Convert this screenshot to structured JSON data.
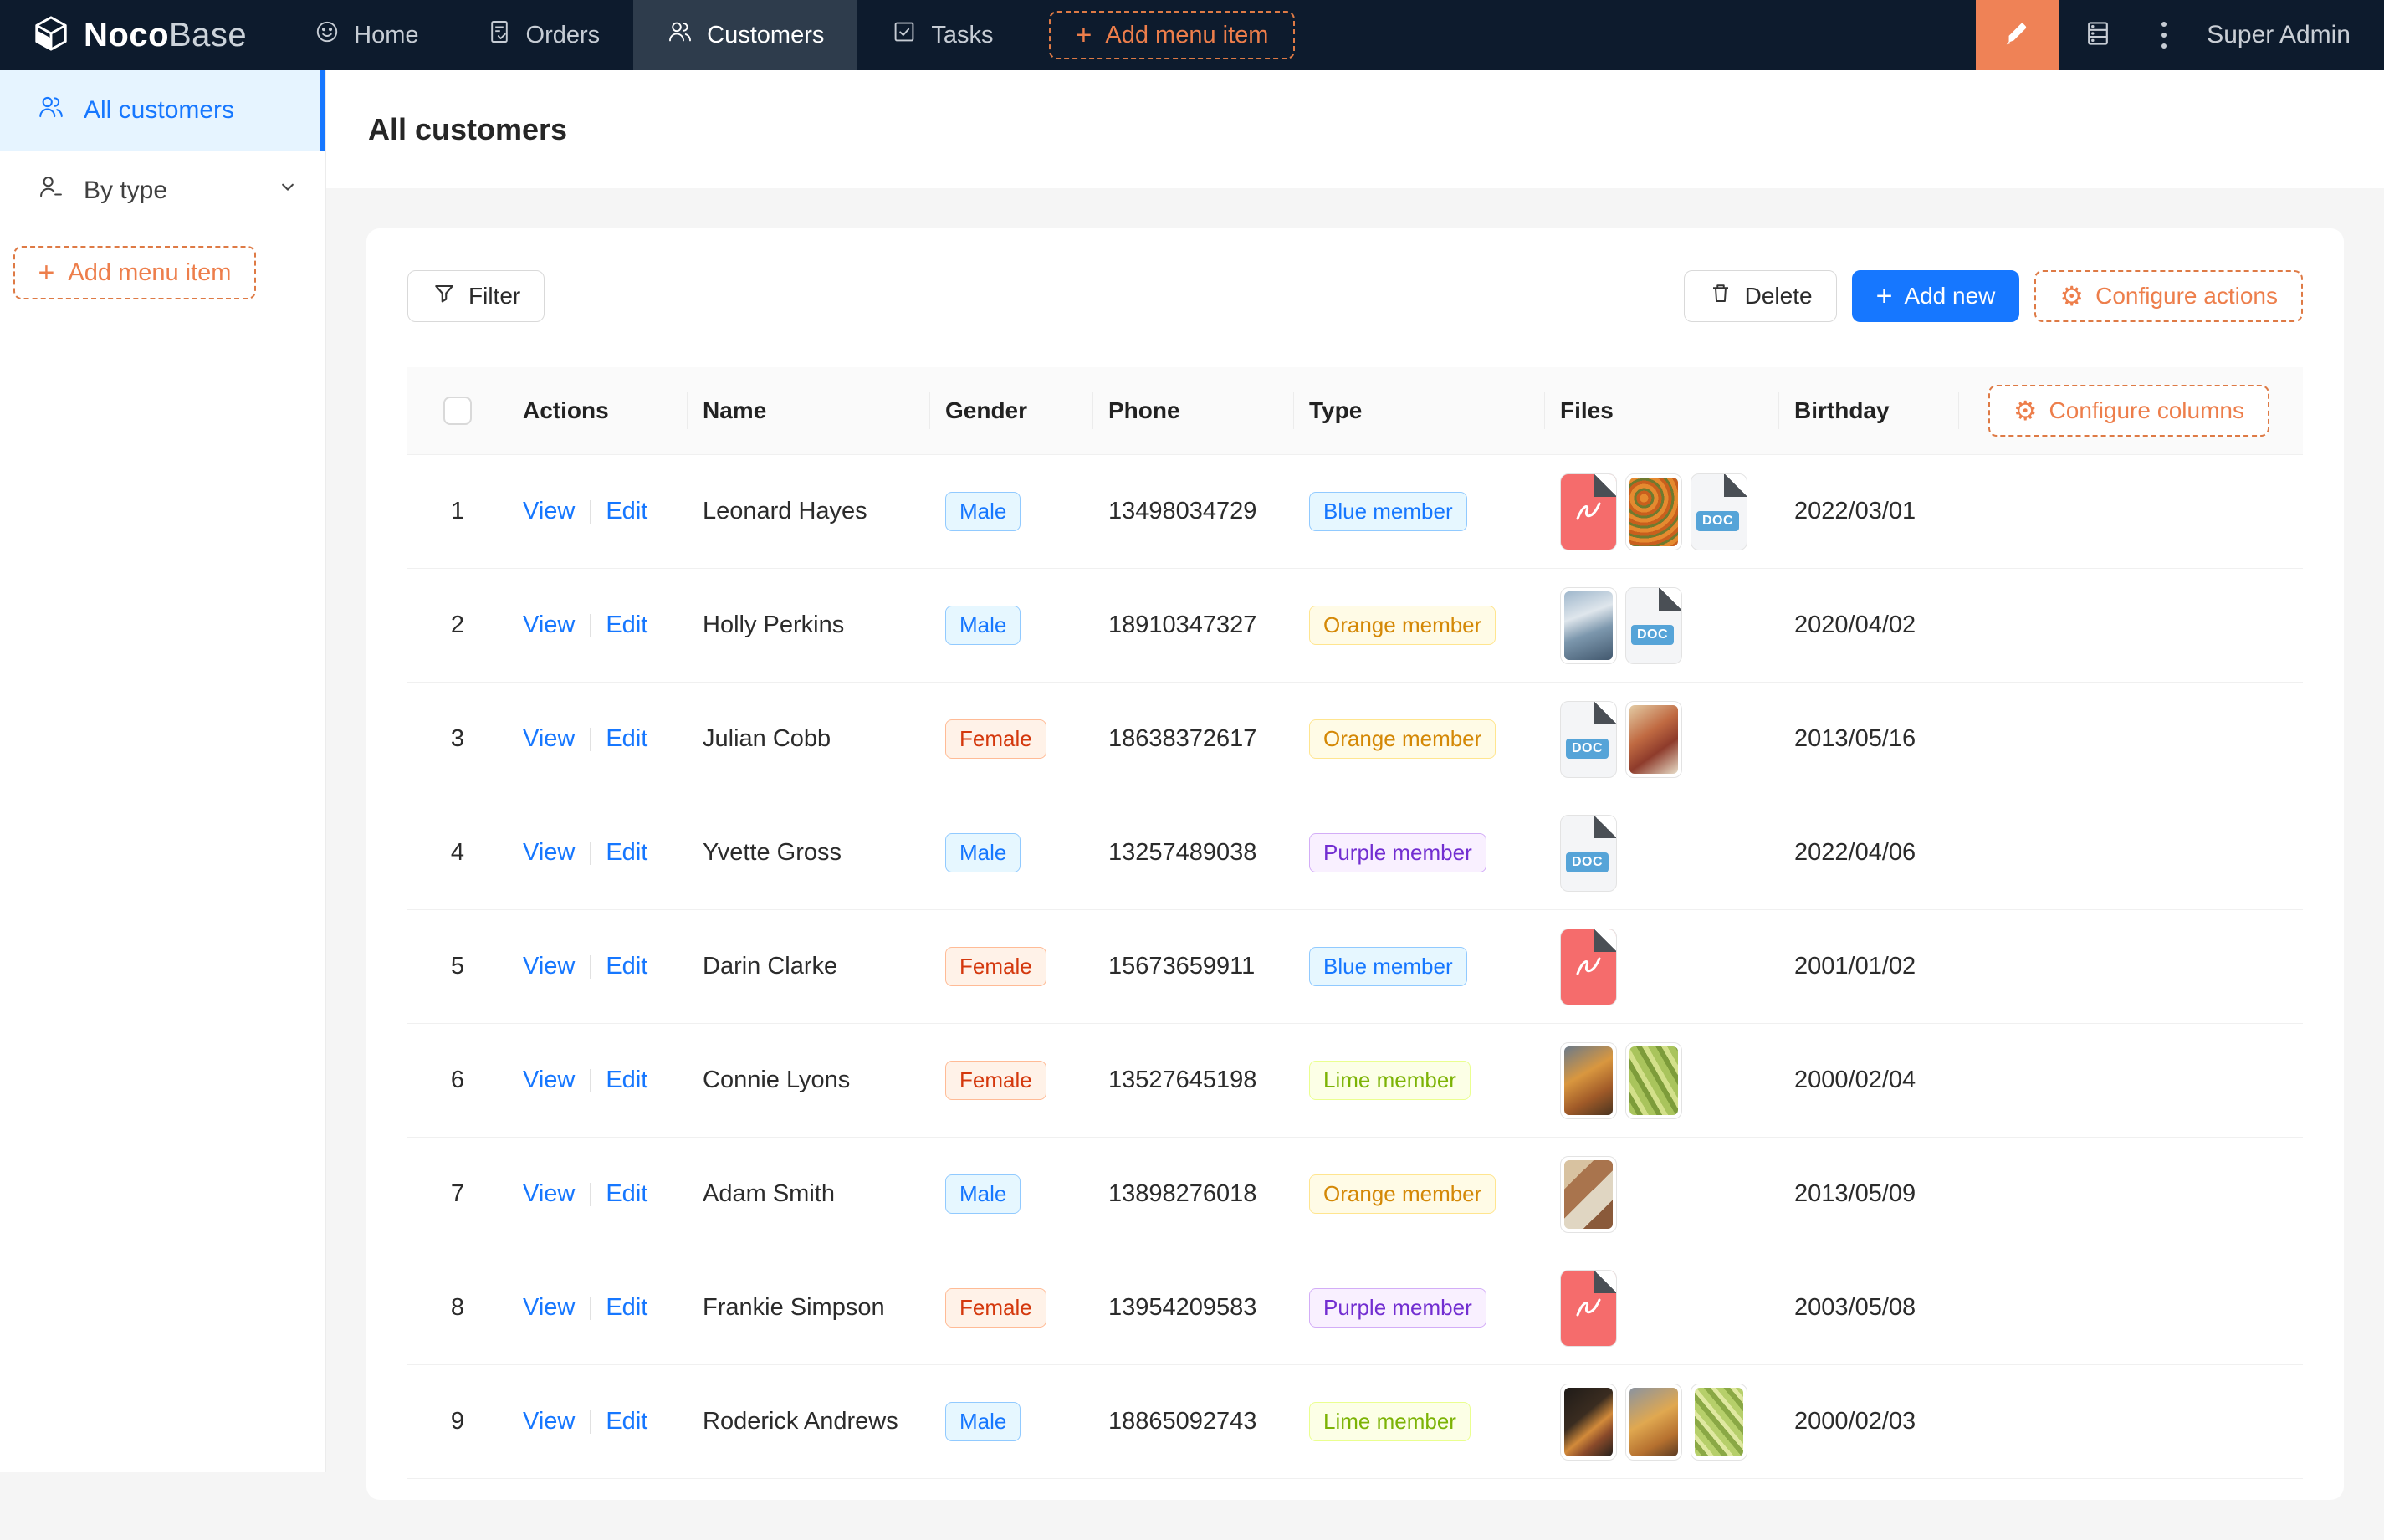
{
  "brand": {
    "bold": "Noco",
    "light": "Base",
    "logo_icon": "cube-logo-icon"
  },
  "navbar": {
    "items": [
      {
        "label": "Home",
        "icon": "smile-icon",
        "active": false
      },
      {
        "label": "Orders",
        "icon": "orders-icon",
        "active": false
      },
      {
        "label": "Customers",
        "icon": "customers-icon",
        "active": true
      },
      {
        "label": "Tasks",
        "icon": "tasks-icon",
        "active": false
      }
    ],
    "add_label": "Add menu item",
    "user": "Super Admin",
    "right_icons": [
      "highlighter-icon",
      "server-icon",
      "kebab-icon"
    ]
  },
  "sidebar": {
    "items": [
      {
        "label": "All customers",
        "icon": "team-icon",
        "active": true,
        "collapsible": false
      },
      {
        "label": "By type",
        "icon": "by-type-icon",
        "active": false,
        "collapsible": true
      }
    ],
    "add_label": "Add menu item"
  },
  "page": {
    "title": "All customers"
  },
  "toolbar": {
    "filter_label": "Filter",
    "delete_label": "Delete",
    "add_new_label": "Add new",
    "configure_actions_label": "Configure actions"
  },
  "table": {
    "columns": [
      "Actions",
      "Name",
      "Gender",
      "Phone",
      "Type",
      "Files",
      "Birthday"
    ],
    "configure_columns_label": "Configure columns",
    "action_links": [
      "View",
      "Edit"
    ],
    "doc_badge": "DOC",
    "rows": [
      {
        "index": 1,
        "name": "Leonard Hayes",
        "gender": {
          "label": "Male",
          "color": "blue"
        },
        "phone": "13498034729",
        "type": {
          "label": "Blue member",
          "color": "blue"
        },
        "files": [
          {
            "kind": "pdf"
          },
          {
            "kind": "img",
            "look": "orange-flowers"
          },
          {
            "kind": "doc"
          }
        ],
        "birthday": "2022/03/01"
      },
      {
        "index": 2,
        "name": "Holly Perkins",
        "gender": {
          "label": "Male",
          "color": "blue"
        },
        "phone": "18910347327",
        "type": {
          "label": "Orange member",
          "color": "gold"
        },
        "files": [
          {
            "kind": "img",
            "look": "crowd-blue"
          },
          {
            "kind": "doc"
          }
        ],
        "birthday": "2020/04/02"
      },
      {
        "index": 3,
        "name": "Julian Cobb",
        "gender": {
          "label": "Female",
          "color": "volcano"
        },
        "phone": "18638372617",
        "type": {
          "label": "Orange member",
          "color": "gold"
        },
        "files": [
          {
            "kind": "doc"
          },
          {
            "kind": "img",
            "look": "food-1"
          }
        ],
        "birthday": "2013/05/16"
      },
      {
        "index": 4,
        "name": "Yvette Gross",
        "gender": {
          "label": "Male",
          "color": "blue"
        },
        "phone": "13257489038",
        "type": {
          "label": "Purple member",
          "color": "purple"
        },
        "files": [
          {
            "kind": "doc"
          }
        ],
        "birthday": "2022/04/06"
      },
      {
        "index": 5,
        "name": "Darin Clarke",
        "gender": {
          "label": "Female",
          "color": "volcano"
        },
        "phone": "15673659911",
        "type": {
          "label": "Blue member",
          "color": "blue"
        },
        "files": [
          {
            "kind": "pdf"
          }
        ],
        "birthday": "2001/01/02"
      },
      {
        "index": 6,
        "name": "Connie Lyons",
        "gender": {
          "label": "Female",
          "color": "volcano"
        },
        "phone": "13527645198",
        "type": {
          "label": "Lime member",
          "color": "lime"
        },
        "files": [
          {
            "kind": "img",
            "look": "autumn"
          },
          {
            "kind": "img",
            "look": "green-veg"
          }
        ],
        "birthday": "2000/02/04"
      },
      {
        "index": 7,
        "name": "Adam Smith",
        "gender": {
          "label": "Male",
          "color": "blue"
        },
        "phone": "13898276018",
        "type": {
          "label": "Orange member",
          "color": "gold"
        },
        "files": [
          {
            "kind": "img",
            "look": "food-collage"
          }
        ],
        "birthday": "2013/05/09"
      },
      {
        "index": 8,
        "name": "Frankie Simpson",
        "gender": {
          "label": "Female",
          "color": "volcano"
        },
        "phone": "13954209583",
        "type": {
          "label": "Purple member",
          "color": "purple"
        },
        "files": [
          {
            "kind": "pdf"
          }
        ],
        "birthday": "2003/05/08"
      },
      {
        "index": 9,
        "name": "Roderick Andrews",
        "gender": {
          "label": "Male",
          "color": "blue"
        },
        "phone": "18865092743",
        "type": {
          "label": "Lime member",
          "color": "lime"
        },
        "files": [
          {
            "kind": "img",
            "look": "dark-fruit"
          },
          {
            "kind": "img",
            "look": "autumn-2"
          },
          {
            "kind": "img",
            "look": "green-2"
          }
        ],
        "birthday": "2000/02/03"
      }
    ]
  },
  "colors": {
    "navbar_bg": "#0d1b2d",
    "navbar_active_bg": "#2e3c4c",
    "accent": "#ed7e4b",
    "orange_square": "#ef8256",
    "primary": "#1677ff",
    "sidebar_active_bg": "#e6f4ff",
    "page_bg": "#f5f5f5"
  }
}
